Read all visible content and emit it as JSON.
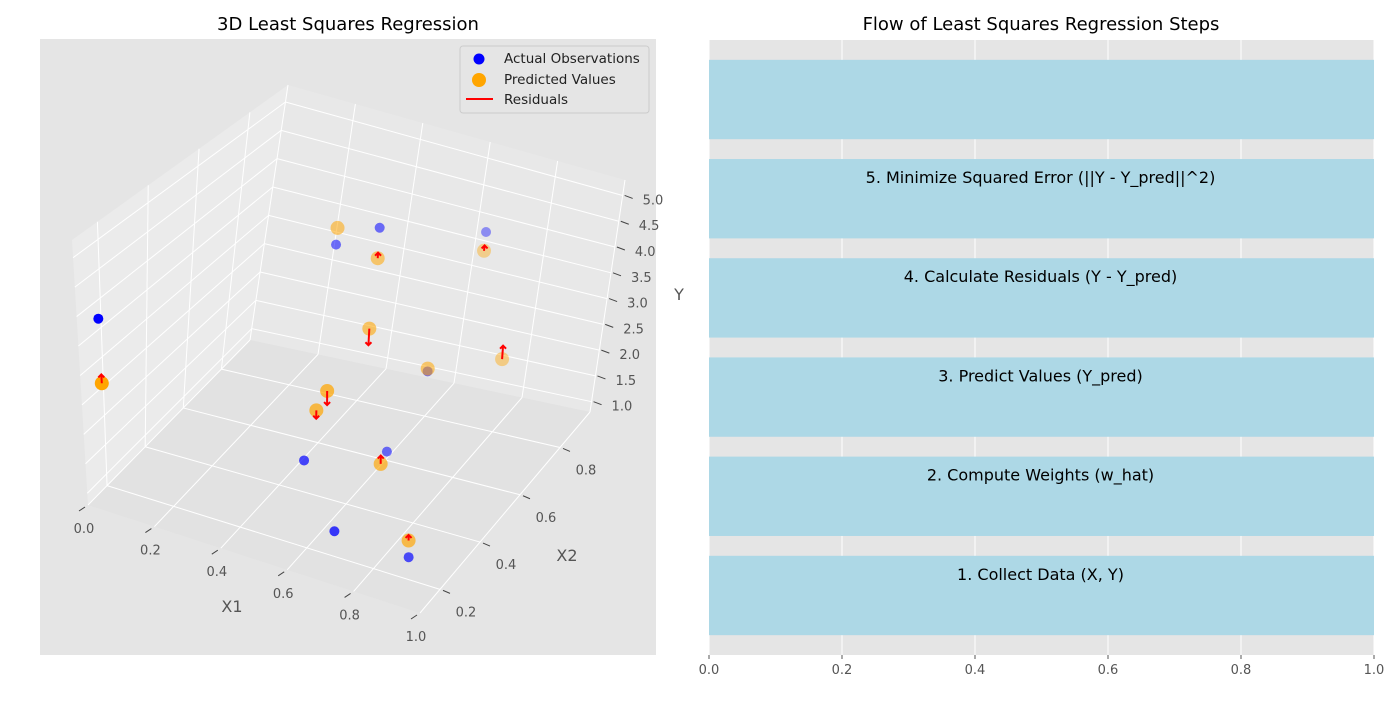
{
  "chart_data": [
    {
      "type": "scatter",
      "projection": "3d",
      "title": "3D Least Squares Regression",
      "xlabel": "X1",
      "ylabel": "X2",
      "zlabel": "Y",
      "xlim": [
        0,
        1
      ],
      "ylim": [
        0.1,
        0.95
      ],
      "zlim": [
        0.8,
        5.3
      ],
      "xticks": [
        0.0,
        0.2,
        0.4,
        0.6,
        0.8,
        1.0
      ],
      "xtick_labels": [
        "0.0",
        "0.2",
        "0.4",
        "0.6",
        "0.8",
        "1.0"
      ],
      "yticks": [
        0.2,
        0.4,
        0.6,
        0.8
      ],
      "ytick_labels": [
        "0.2",
        "0.4",
        "0.6",
        "0.8"
      ],
      "zticks": [
        1.0,
        1.5,
        2.0,
        2.5,
        3.0,
        3.5,
        4.0,
        4.5,
        5.0
      ],
      "ztick_labels": [
        "1.0",
        "1.5",
        "2.0",
        "2.5",
        "3.0",
        "3.5",
        "4.0",
        "4.5",
        "5.0"
      ],
      "grid": true,
      "legend_position": "top-right",
      "colors": {
        "actual": "#0000ff",
        "predicted": "#ffa500",
        "residual": "#ff0000"
      },
      "series": [
        {
          "name": "Actual Observations",
          "points": [
            {
              "x": 0.05,
              "y": 0.12,
              "z": 4.0
            },
            {
              "x": 0.55,
              "y": 0.58,
              "z": 5.0
            },
            {
              "x": 0.35,
              "y": 0.7,
              "z": 3.9
            },
            {
              "x": 0.74,
              "y": 0.76,
              "z": 4.6
            },
            {
              "x": 0.79,
              "y": 0.46,
              "z": 3.3
            },
            {
              "x": 0.49,
              "y": 0.37,
              "z": 1.5
            },
            {
              "x": 0.69,
              "y": 0.19,
              "z": 1.3
            },
            {
              "x": 0.63,
              "y": 0.55,
              "z": 1.2
            },
            {
              "x": 0.9,
              "y": 0.21,
              "z": 1.15
            }
          ]
        },
        {
          "name": "Predicted Values",
          "points": [
            {
              "x": 0.05,
              "y": 0.12,
              "z": 2.9
            },
            {
              "x": 0.55,
              "y": 0.58,
              "z": 4.45
            },
            {
              "x": 0.35,
              "y": 0.7,
              "z": 4.2
            },
            {
              "x": 0.74,
              "y": 0.76,
              "z": 4.25
            },
            {
              "x": 0.79,
              "y": 0.46,
              "z": 3.35
            },
            {
              "x": 0.6,
              "y": 0.3,
              "z": 3.2
            },
            {
              "x": 0.57,
              "y": 0.53,
              "z": 3.4
            },
            {
              "x": 0.93,
              "y": 0.58,
              "z": 3.3
            },
            {
              "x": 0.53,
              "y": 0.36,
              "z": 2.5
            },
            {
              "x": 0.76,
              "y": 0.3,
              "z": 2.2
            },
            {
              "x": 0.9,
              "y": 0.21,
              "z": 1.45
            }
          ]
        }
      ],
      "residuals": [
        {
          "x": 0.05,
          "y": 0.12,
          "z_from": 2.9,
          "z_to": 3.05
        },
        {
          "x": 0.55,
          "y": 0.58,
          "z_from": 4.45,
          "z_to": 4.55
        },
        {
          "x": 0.74,
          "y": 0.76,
          "z_from": 4.25,
          "z_to": 4.35
        },
        {
          "x": 0.6,
          "y": 0.3,
          "z_from": 3.2,
          "z_to": 2.95
        },
        {
          "x": 0.57,
          "y": 0.53,
          "z_from": 3.4,
          "z_to": 3.1
        },
        {
          "x": 0.93,
          "y": 0.58,
          "z_from": 3.3,
          "z_to": 3.55
        },
        {
          "x": 0.53,
          "y": 0.36,
          "z_from": 2.5,
          "z_to": 2.35
        },
        {
          "x": 0.76,
          "y": 0.3,
          "z_from": 2.2,
          "z_to": 2.35
        },
        {
          "x": 0.9,
          "y": 0.21,
          "z_from": 1.45,
          "z_to": 1.55
        }
      ]
    },
    {
      "type": "bar",
      "orientation": "horizontal",
      "title": "Flow of Least Squares Regression Steps",
      "xlim": [
        0,
        1
      ],
      "xticks": [
        0.0,
        0.2,
        0.4,
        0.6,
        0.8,
        1.0
      ],
      "xtick_labels": [
        "0.0",
        "0.2",
        "0.4",
        "0.6",
        "0.8",
        "1.0"
      ],
      "grid": true,
      "bar_color": "#add8e6",
      "categories": [
        "1. Collect Data (X, Y)",
        "2. Compute Weights (w_hat)",
        "3. Predict Values (Y_pred)",
        "4. Calculate Residuals (Y - Y_pred)",
        "5. Minimize Squared Error (||Y - Y_pred||^2)",
        ""
      ],
      "values": [
        1,
        1,
        1,
        1,
        1,
        1
      ]
    }
  ]
}
